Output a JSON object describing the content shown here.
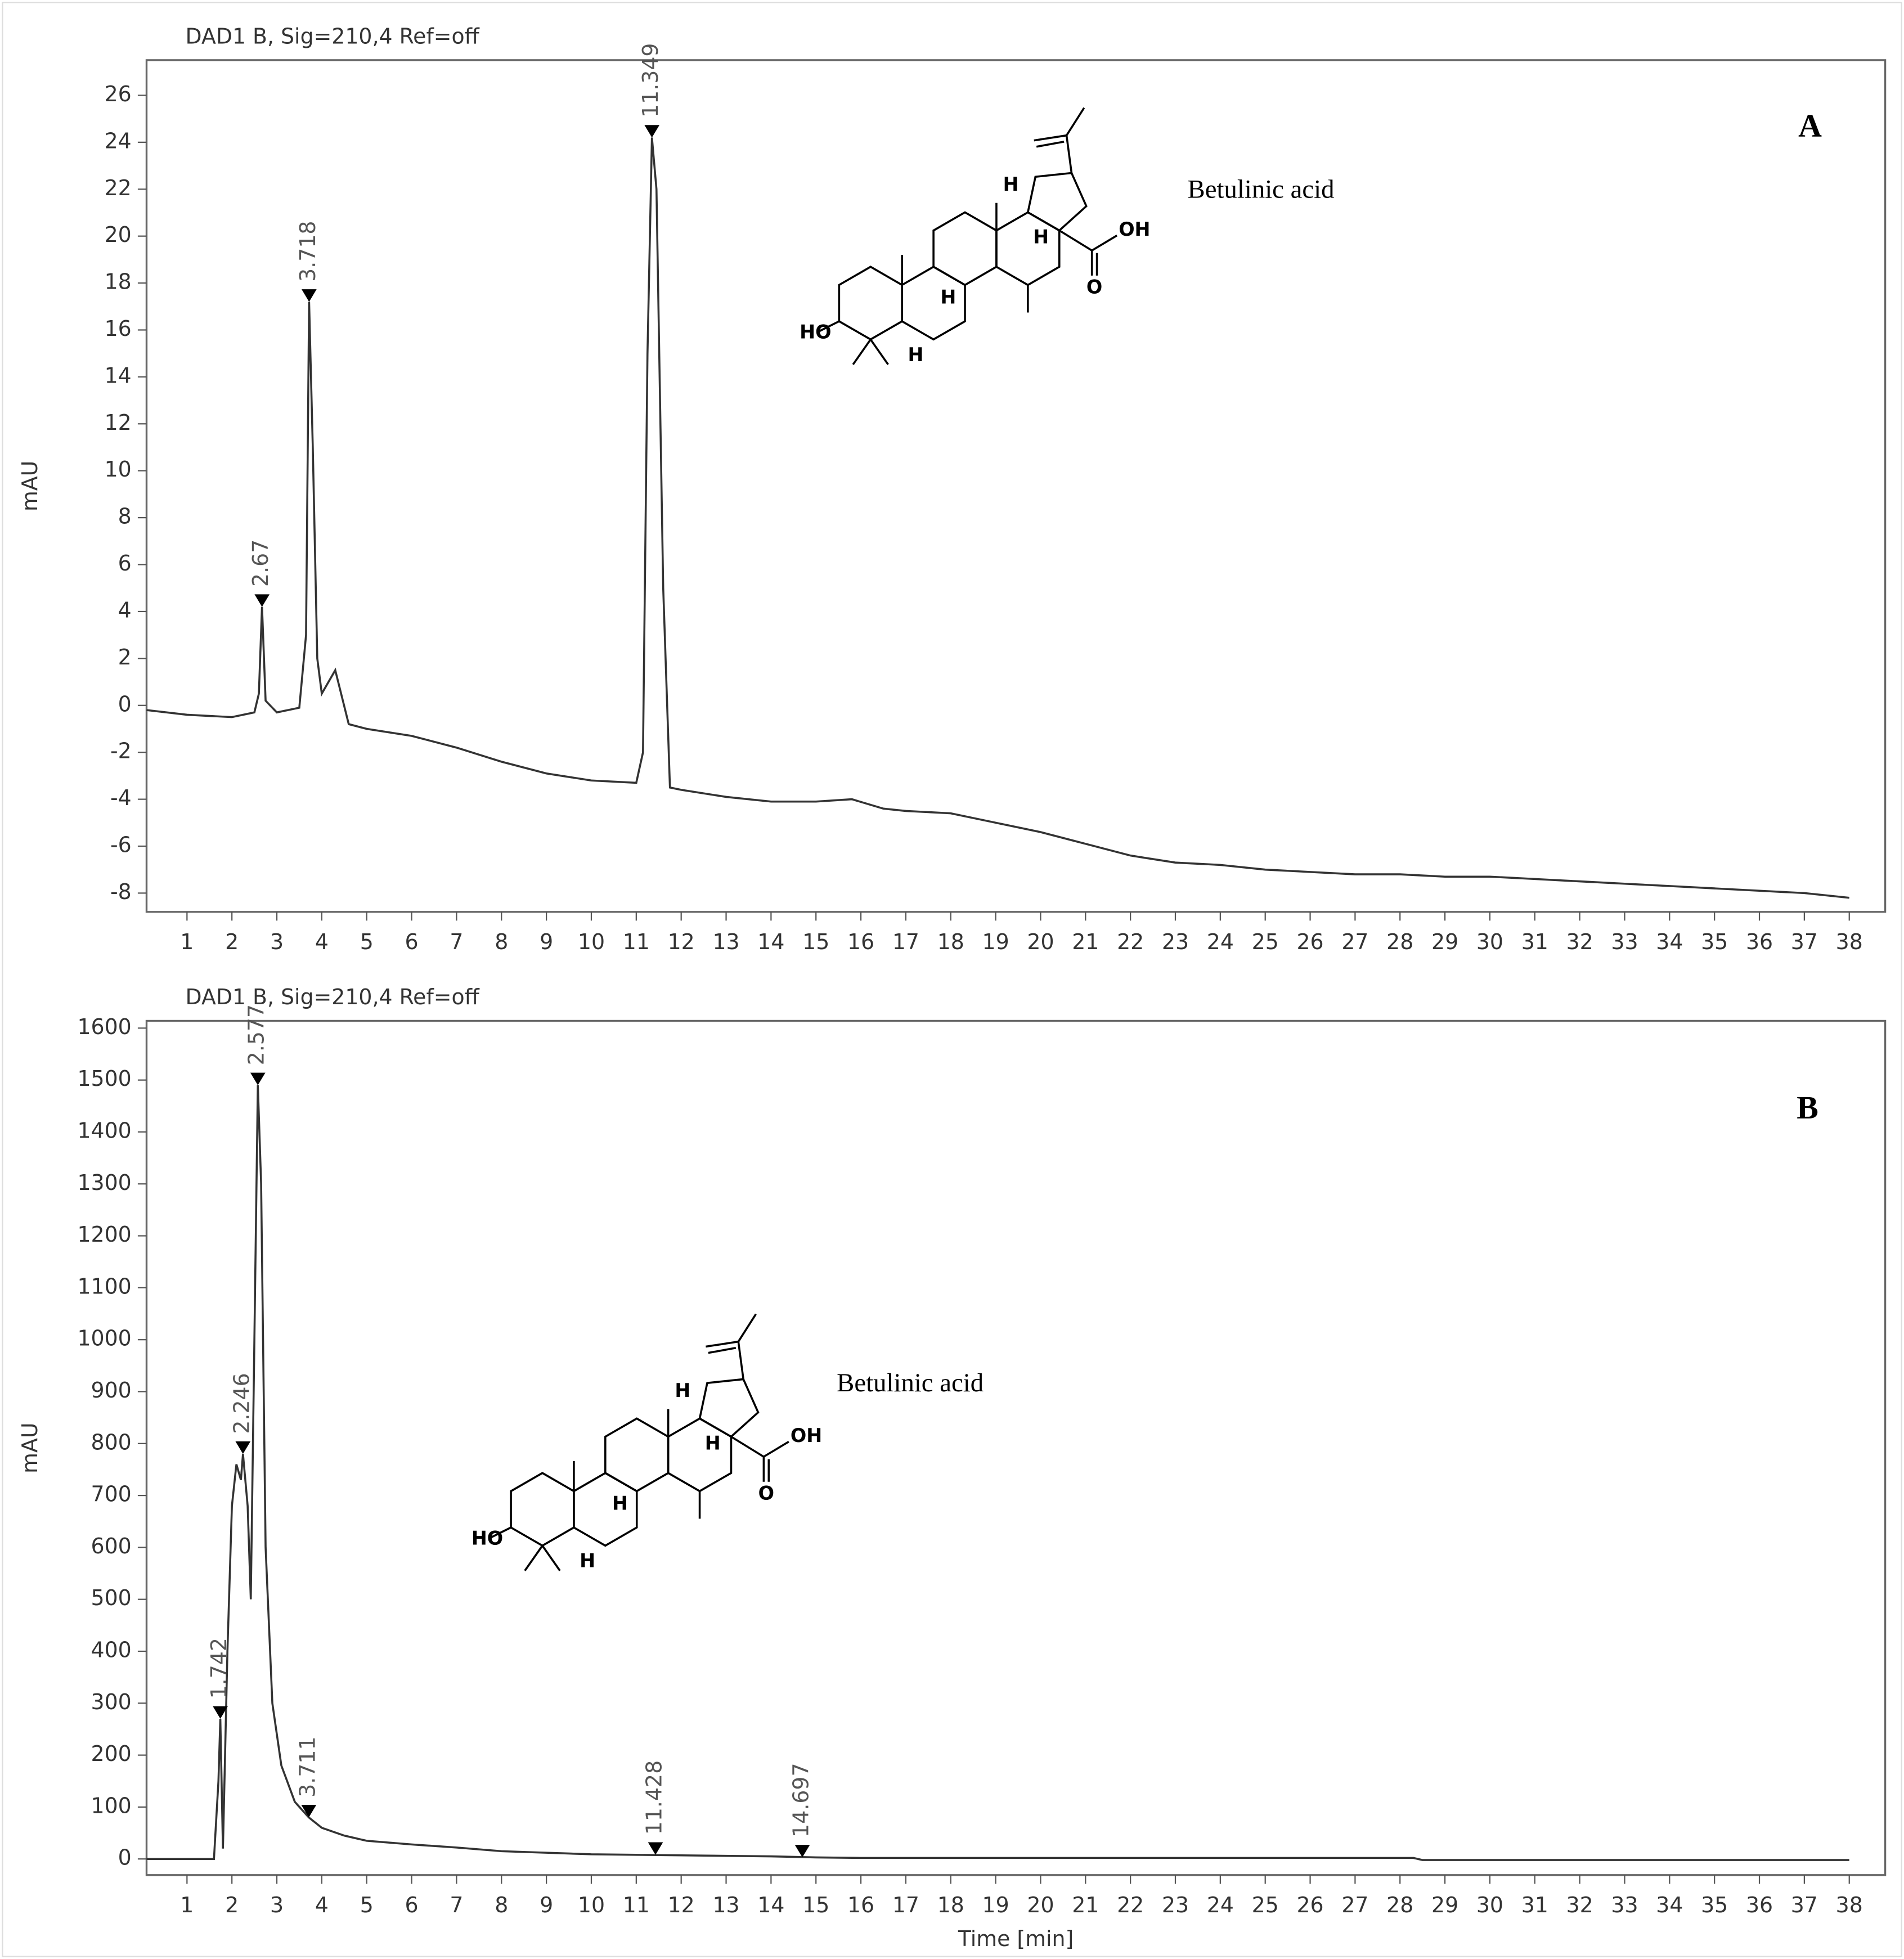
{
  "chart_data": [
    {
      "type": "line",
      "title": "DAD1 B, Sig=210,4 Ref=off",
      "panel_label": "A",
      "ylabel": "mAU",
      "color": "#333333",
      "annotation": "Betulinic acid",
      "structure_labels": [
        "HO",
        "H",
        "H",
        "H",
        "H",
        "OH",
        "O"
      ],
      "xlim": [
        0.1,
        38.8
      ],
      "ylim": [
        -8.8,
        27.5
      ],
      "xticks": [
        1,
        2,
        3,
        4,
        5,
        6,
        7,
        8,
        9,
        10,
        11,
        12,
        13,
        14,
        15,
        16,
        17,
        18,
        19,
        20,
        21,
        22,
        23,
        24,
        25,
        26,
        27,
        28,
        29,
        30,
        31,
        32,
        33,
        34,
        35,
        36,
        37,
        38
      ],
      "yticks": [
        -8,
        -6,
        -4,
        -2,
        0,
        2,
        4,
        6,
        8,
        10,
        12,
        14,
        16,
        18,
        20,
        22,
        24,
        26
      ],
      "x": [
        0.1,
        1,
        2,
        2.5,
        2.6,
        2.67,
        2.75,
        3,
        3.5,
        3.65,
        3.718,
        3.8,
        3.9,
        4,
        4.3,
        4.6,
        5,
        6,
        7,
        8,
        9,
        10,
        11,
        11.15,
        11.25,
        11.349,
        11.45,
        11.6,
        11.75,
        12,
        13,
        14,
        15,
        15.8,
        16.5,
        17,
        18,
        19,
        20,
        21,
        22,
        23,
        24,
        25,
        26,
        27,
        28,
        29,
        30,
        31,
        32,
        33,
        34,
        35,
        36,
        37,
        38
      ],
      "values": [
        -0.2,
        -0.4,
        -0.5,
        -0.3,
        0.5,
        4.2,
        0.2,
        -0.3,
        -0.1,
        3,
        17.2,
        11,
        2,
        0.5,
        1.5,
        -0.8,
        -1,
        -1.3,
        -1.8,
        -2.4,
        -2.9,
        -3.2,
        -3.3,
        -2,
        15,
        24.2,
        22,
        5,
        -3.5,
        -3.6,
        -3.9,
        -4.1,
        -4.1,
        -4,
        -4.4,
        -4.5,
        -4.6,
        -5,
        -5.4,
        -5.9,
        -6.4,
        -6.7,
        -6.8,
        -7,
        -7.1,
        -7.2,
        -7.2,
        -7.3,
        -7.3,
        -7.4,
        -7.5,
        -7.6,
        -7.7,
        -7.8,
        -7.9,
        -8,
        -8.2
      ],
      "peaks": [
        {
          "x": 2.67,
          "y": 4.2
        },
        {
          "x": 3.718,
          "y": 17.2
        },
        {
          "x": 11.349,
          "y": 24.2
        }
      ]
    },
    {
      "type": "line",
      "title": "DAD1 B, Sig=210,4 Ref=off",
      "panel_label": "B",
      "ylabel": "mAU",
      "xlabel": "Time [min]",
      "color": "#333333",
      "annotation": "Betulinic acid",
      "structure_labels": [
        "HO",
        "H",
        "H",
        "H",
        "H",
        "OH",
        "O"
      ],
      "xlim": [
        0.1,
        38.8
      ],
      "ylim": [
        -31,
        1614
      ],
      "xticks": [
        1,
        2,
        3,
        4,
        5,
        6,
        7,
        8,
        9,
        10,
        11,
        12,
        13,
        14,
        15,
        16,
        17,
        18,
        19,
        20,
        21,
        22,
        23,
        24,
        25,
        26,
        27,
        28,
        29,
        30,
        31,
        32,
        33,
        34,
        35,
        36,
        37,
        38
      ],
      "yticks": [
        0,
        100,
        200,
        300,
        400,
        500,
        600,
        700,
        800,
        900,
        1000,
        1100,
        1200,
        1300,
        1400,
        1500,
        1600
      ],
      "x": [
        0.1,
        1.6,
        1.7,
        1.742,
        1.8,
        1.9,
        2,
        2.1,
        2.2,
        2.246,
        2.35,
        2.42,
        2.5,
        2.577,
        2.65,
        2.75,
        2.9,
        3.1,
        3.4,
        3.711,
        4,
        4.5,
        5,
        6,
        7,
        8,
        9,
        10,
        11,
        12,
        13,
        14,
        15,
        16,
        20,
        28.3,
        28.5,
        38
      ],
      "values": [
        0,
        0,
        150,
        270,
        20,
        400,
        680,
        760,
        730,
        780,
        680,
        500,
        1000,
        1490,
        1300,
        600,
        300,
        180,
        110,
        80,
        60,
        45,
        35,
        28,
        22,
        15,
        12,
        9,
        8,
        7,
        6,
        5,
        3,
        2,
        2,
        2,
        -2,
        -2
      ],
      "peaks": [
        {
          "x": 1.742,
          "y": 270
        },
        {
          "x": 2.246,
          "y": 780
        },
        {
          "x": 2.577,
          "y": 1490
        },
        {
          "x": 3.711,
          "y": 80
        },
        {
          "x": 11.428,
          "y": 8
        },
        {
          "x": 14.697,
          "y": 3
        }
      ]
    }
  ]
}
